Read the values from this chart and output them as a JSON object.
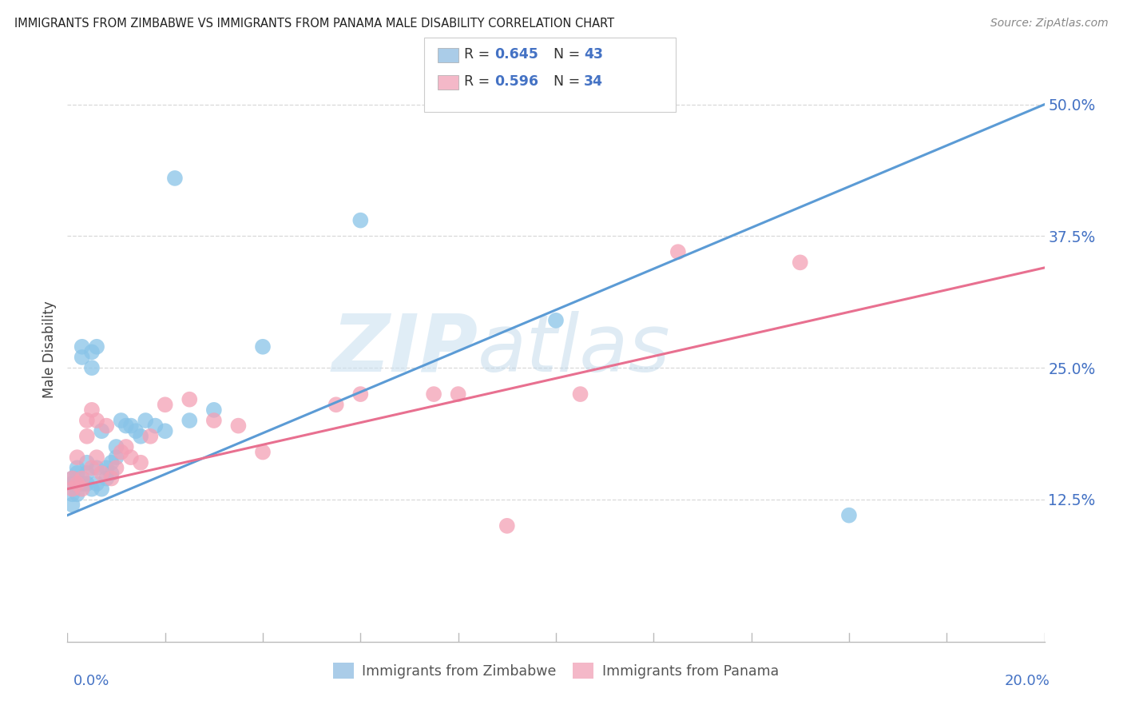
{
  "title": "IMMIGRANTS FROM ZIMBABWE VS IMMIGRANTS FROM PANAMA MALE DISABILITY CORRELATION CHART",
  "source": "Source: ZipAtlas.com",
  "ylabel": "Male Disability",
  "y_tick_labels": [
    "12.5%",
    "25.0%",
    "37.5%",
    "50.0%"
  ],
  "y_tick_values": [
    0.125,
    0.25,
    0.375,
    0.5
  ],
  "x_min": 0.0,
  "x_max": 0.2,
  "y_min": -0.01,
  "y_max": 0.545,
  "color_zimbabwe": "#89c4e8",
  "color_panama": "#f4a0b5",
  "color_line_zimbabwe": "#5b9bd5",
  "color_line_panama": "#e87090",
  "scatter_zimbabwe_x": [
    0.001,
    0.001,
    0.001,
    0.001,
    0.002,
    0.002,
    0.002,
    0.002,
    0.003,
    0.003,
    0.003,
    0.004,
    0.004,
    0.004,
    0.005,
    0.005,
    0.005,
    0.006,
    0.006,
    0.006,
    0.007,
    0.007,
    0.008,
    0.008,
    0.009,
    0.009,
    0.01,
    0.01,
    0.011,
    0.012,
    0.013,
    0.014,
    0.015,
    0.016,
    0.018,
    0.02,
    0.022,
    0.025,
    0.03,
    0.04,
    0.06,
    0.1,
    0.16
  ],
  "scatter_zimbabwe_y": [
    0.145,
    0.14,
    0.13,
    0.12,
    0.155,
    0.15,
    0.14,
    0.13,
    0.27,
    0.26,
    0.14,
    0.16,
    0.15,
    0.14,
    0.265,
    0.25,
    0.135,
    0.27,
    0.155,
    0.14,
    0.19,
    0.135,
    0.155,
    0.145,
    0.16,
    0.15,
    0.175,
    0.165,
    0.2,
    0.195,
    0.195,
    0.19,
    0.185,
    0.2,
    0.195,
    0.19,
    0.43,
    0.2,
    0.21,
    0.27,
    0.39,
    0.295,
    0.11
  ],
  "scatter_panama_x": [
    0.001,
    0.001,
    0.002,
    0.002,
    0.003,
    0.003,
    0.004,
    0.004,
    0.005,
    0.005,
    0.006,
    0.006,
    0.007,
    0.008,
    0.009,
    0.01,
    0.011,
    0.012,
    0.013,
    0.015,
    0.017,
    0.02,
    0.025,
    0.03,
    0.035,
    0.04,
    0.055,
    0.06,
    0.075,
    0.08,
    0.09,
    0.105,
    0.125,
    0.15
  ],
  "scatter_panama_y": [
    0.145,
    0.135,
    0.165,
    0.14,
    0.145,
    0.135,
    0.2,
    0.185,
    0.21,
    0.155,
    0.2,
    0.165,
    0.15,
    0.195,
    0.145,
    0.155,
    0.17,
    0.175,
    0.165,
    0.16,
    0.185,
    0.215,
    0.22,
    0.2,
    0.195,
    0.17,
    0.215,
    0.225,
    0.225,
    0.225,
    0.1,
    0.225,
    0.36,
    0.35
  ],
  "line_zimbabwe": {
    "x0": 0.0,
    "y0": 0.11,
    "x1": 0.2,
    "y1": 0.5
  },
  "line_panama": {
    "x0": 0.0,
    "y0": 0.135,
    "x1": 0.2,
    "y1": 0.345
  },
  "watermark_zip": "ZIP",
  "watermark_atlas": "atlas",
  "background_color": "#ffffff",
  "grid_color": "#d0d0d0",
  "legend_color_zim": "#aacce8",
  "legend_color_pan": "#f4b8c8"
}
